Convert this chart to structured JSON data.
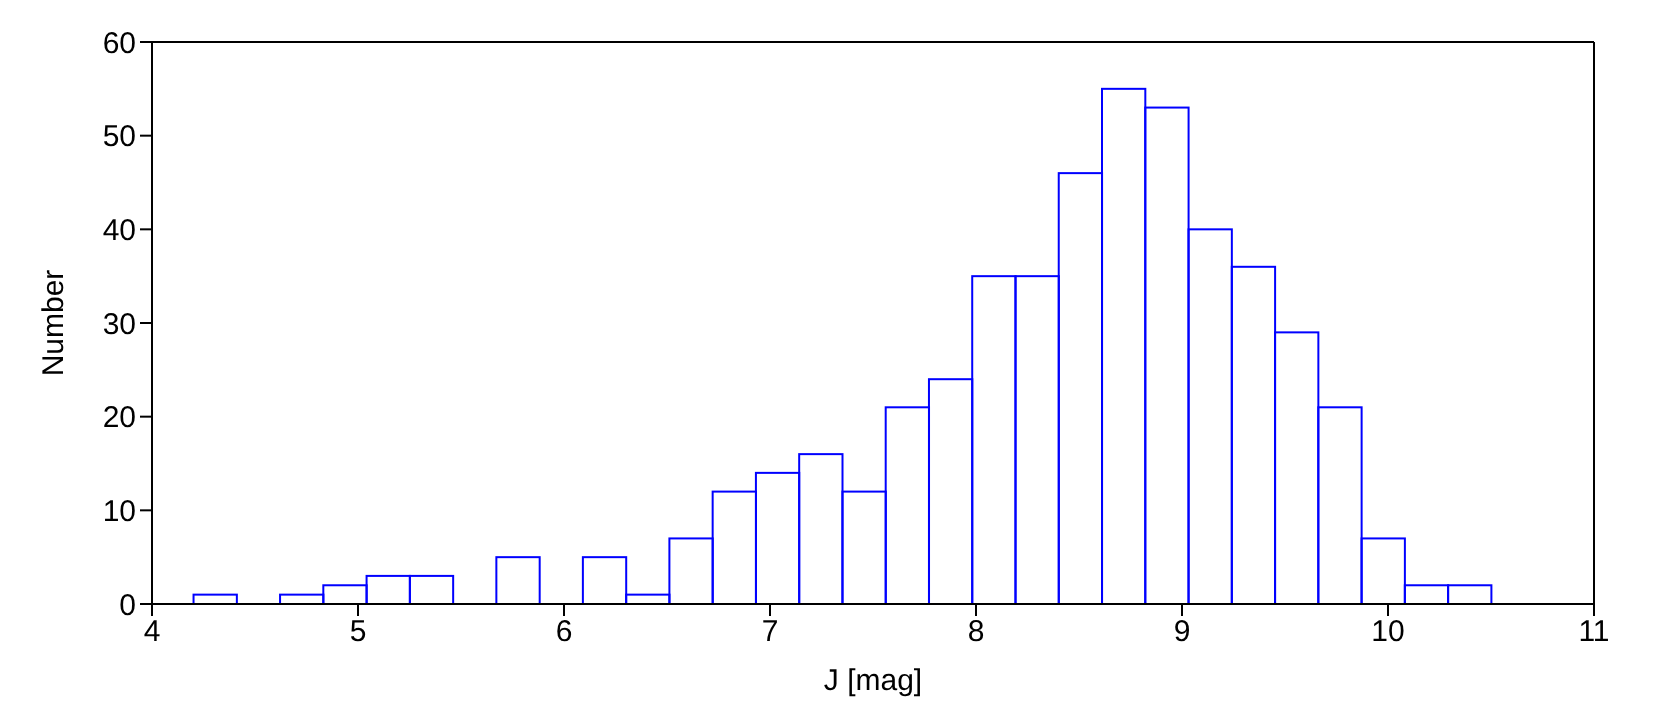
{
  "chart_data": {
    "type": "histogram",
    "xlabel": "J [mag]",
    "ylabel": "Number",
    "color": "#0000ff",
    "bins": [
      4.2,
      4.41,
      4.62,
      4.83,
      5.04,
      5.25,
      5.46,
      5.67,
      5.88,
      6.09,
      6.3,
      6.51,
      6.72,
      6.93,
      7.14,
      7.35,
      7.56,
      7.77,
      7.98,
      8.19,
      8.4,
      8.61,
      8.82,
      9.03,
      9.24,
      9.45,
      9.66,
      9.87,
      10.08,
      10.29,
      10.5
    ],
    "values": [
      1,
      0,
      1,
      2,
      3,
      3,
      0,
      5,
      0,
      5,
      1,
      7,
      12,
      14,
      16,
      12,
      21,
      24,
      35,
      35,
      46,
      55,
      53,
      40,
      36,
      29,
      21,
      7,
      2,
      2
    ],
    "xlim": [
      4,
      11
    ],
    "xticks": [
      4,
      5,
      6,
      7,
      8,
      9,
      10,
      11
    ],
    "ylim": [
      0,
      60
    ],
    "yticks": [
      0,
      10,
      20,
      30,
      40,
      50,
      60
    ],
    "grid": false,
    "legend": false
  }
}
